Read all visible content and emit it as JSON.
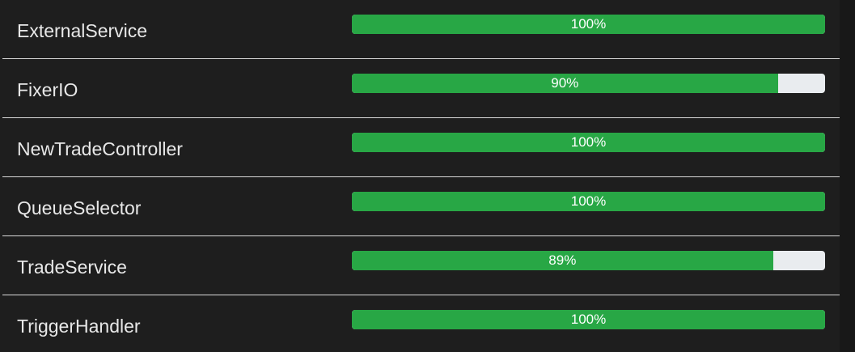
{
  "rows": [
    {
      "name": "ExternalService",
      "percent_label": "100%",
      "progress": 1.0
    },
    {
      "name": "FixerIO",
      "percent_label": "90%",
      "progress": 0.9
    },
    {
      "name": "NewTradeController",
      "percent_label": "100%",
      "progress": 1.0
    },
    {
      "name": "QueueSelector",
      "percent_label": "100%",
      "progress": 1.0
    },
    {
      "name": "TradeService",
      "percent_label": "89%",
      "progress": 0.89
    },
    {
      "name": "TriggerHandler",
      "percent_label": "100%",
      "progress": 1.0
    }
  ],
  "colors": {
    "background": "#1e1e1e",
    "fill": "#28a745",
    "track": "#e9ecef",
    "text": "#e8e8e8",
    "divider": "#d9d9d9"
  }
}
